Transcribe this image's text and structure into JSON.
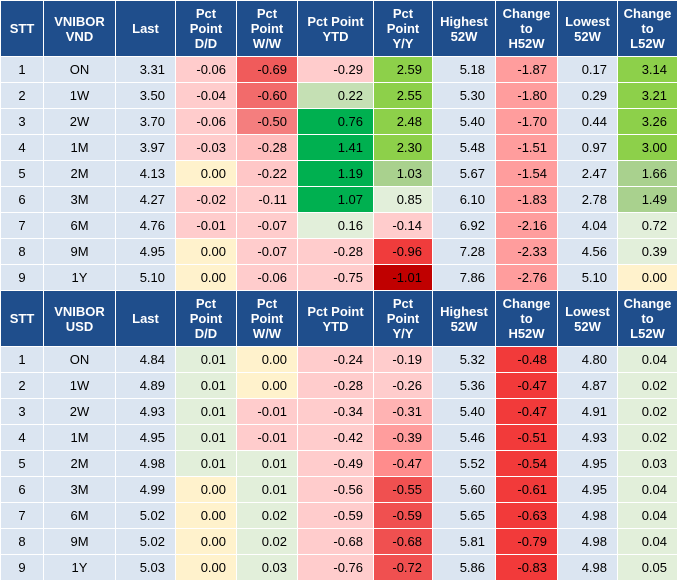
{
  "vnd": {
    "headers": [
      "STT",
      "VNIBOR\nVND",
      "Last",
      "Pct\nPoint\nD/D",
      "Pct\nPoint\nW/W",
      "Pct Point\nYTD",
      "Pct\nPoint\nY/Y",
      "Highest\n52W",
      "Change\nto\nH52W",
      "Lowest\n52W",
      "Change\nto\nL52W"
    ],
    "rows": [
      [
        "1",
        "ON",
        "3.31",
        "-0.06",
        "-0.69",
        "-0.29",
        "2.59",
        "5.18",
        "-1.87",
        "0.17",
        "3.14"
      ],
      [
        "2",
        "1W",
        "3.50",
        "-0.04",
        "-0.60",
        "0.22",
        "2.55",
        "5.30",
        "-1.80",
        "0.29",
        "3.21"
      ],
      [
        "3",
        "2W",
        "3.70",
        "-0.06",
        "-0.50",
        "0.76",
        "2.48",
        "5.40",
        "-1.70",
        "0.44",
        "3.26"
      ],
      [
        "4",
        "1M",
        "3.97",
        "-0.03",
        "-0.28",
        "1.41",
        "2.30",
        "5.48",
        "-1.51",
        "0.97",
        "3.00"
      ],
      [
        "5",
        "2M",
        "4.13",
        "0.00",
        "-0.22",
        "1.19",
        "1.03",
        "5.67",
        "-1.54",
        "2.47",
        "1.66"
      ],
      [
        "6",
        "3M",
        "4.27",
        "-0.02",
        "-0.11",
        "1.07",
        "0.85",
        "6.10",
        "-1.83",
        "2.78",
        "1.49"
      ],
      [
        "7",
        "6M",
        "4.76",
        "-0.01",
        "-0.07",
        "0.16",
        "-0.14",
        "6.92",
        "-2.16",
        "4.04",
        "0.72"
      ],
      [
        "8",
        "9M",
        "4.95",
        "0.00",
        "-0.07",
        "-0.28",
        "-0.96",
        "7.28",
        "-2.33",
        "4.56",
        "0.39"
      ],
      [
        "9",
        "1Y",
        "5.10",
        "0.00",
        "-0.06",
        "-0.75",
        "-1.01",
        "7.86",
        "-2.76",
        "5.10",
        "0.00"
      ]
    ],
    "colors": [
      [
        "#dbe5f1",
        "#dbe5f1",
        "#dbe5f1",
        "#ffcccc",
        "#f05b5b",
        "#ffcccc",
        "#8dd04a",
        "#dbe5f1",
        "#ff9d9d",
        "#dbe5f1",
        "#8dd04a"
      ],
      [
        "#dbe5f1",
        "#dbe5f1",
        "#dbe5f1",
        "#ffcccc",
        "#f26b6b",
        "#c5e0b4",
        "#8dd04a",
        "#dbe5f1",
        "#ff9d9d",
        "#dbe5f1",
        "#8dd04a"
      ],
      [
        "#dbe5f1",
        "#dbe5f1",
        "#dbe5f1",
        "#ffcccc",
        "#f47e7e",
        "#00b050",
        "#8dd04a",
        "#dbe5f1",
        "#ff9d9d",
        "#dbe5f1",
        "#8dd04a"
      ],
      [
        "#dbe5f1",
        "#dbe5f1",
        "#dbe5f1",
        "#ffcccc",
        "#ffbdbd",
        "#00b050",
        "#8dd04a",
        "#dbe5f1",
        "#ff9d9d",
        "#dbe5f1",
        "#8dd04a"
      ],
      [
        "#dbe5f1",
        "#dbe5f1",
        "#dbe5f1",
        "#fff2cc",
        "#ffc7c7",
        "#00b050",
        "#a9d18e",
        "#dbe5f1",
        "#ff9d9d",
        "#dbe5f1",
        "#a9d18e"
      ],
      [
        "#dbe5f1",
        "#dbe5f1",
        "#dbe5f1",
        "#ffcccc",
        "#ffcccc",
        "#00b050",
        "#e2efda",
        "#dbe5f1",
        "#ff9d9d",
        "#dbe5f1",
        "#a9d18e"
      ],
      [
        "#dbe5f1",
        "#dbe5f1",
        "#dbe5f1",
        "#ffcccc",
        "#ffcccc",
        "#e2efda",
        "#ffcccc",
        "#dbe5f1",
        "#ff9d9d",
        "#dbe5f1",
        "#e2efda"
      ],
      [
        "#dbe5f1",
        "#dbe5f1",
        "#dbe5f1",
        "#fff2cc",
        "#ffcccc",
        "#ffcccc",
        "#f03c3c",
        "#dbe5f1",
        "#ff9d9d",
        "#dbe5f1",
        "#e2efda"
      ],
      [
        "#dbe5f1",
        "#dbe5f1",
        "#dbe5f1",
        "#fff2cc",
        "#ffcccc",
        "#ffcccc",
        "#c00000",
        "#dbe5f1",
        "#ff9d9d",
        "#dbe5f1",
        "#fff2cc"
      ]
    ]
  },
  "usd": {
    "headers": [
      "STT",
      "VNIBOR\nUSD",
      "Last",
      "Pct\nPoint\nD/D",
      "Pct\nPoint\nW/W",
      "Pct Point\nYTD",
      "Pct\nPoint\nY/Y",
      "Highest\n52W",
      "Change\nto\nH52W",
      "Lowest\n52W",
      "Change\nto\nL52W"
    ],
    "rows": [
      [
        "1",
        "ON",
        "4.84",
        "0.01",
        "0.00",
        "-0.24",
        "-0.19",
        "5.32",
        "-0.48",
        "4.80",
        "0.04"
      ],
      [
        "2",
        "1W",
        "4.89",
        "0.01",
        "0.00",
        "-0.28",
        "-0.26",
        "5.36",
        "-0.47",
        "4.87",
        "0.02"
      ],
      [
        "3",
        "2W",
        "4.93",
        "0.01",
        "-0.01",
        "-0.34",
        "-0.31",
        "5.40",
        "-0.47",
        "4.91",
        "0.02"
      ],
      [
        "4",
        "1M",
        "4.95",
        "0.01",
        "-0.01",
        "-0.42",
        "-0.39",
        "5.46",
        "-0.51",
        "4.93",
        "0.02"
      ],
      [
        "5",
        "2M",
        "4.98",
        "0.01",
        "0.01",
        "-0.49",
        "-0.47",
        "5.52",
        "-0.54",
        "4.95",
        "0.03"
      ],
      [
        "6",
        "3M",
        "4.99",
        "0.00",
        "0.01",
        "-0.56",
        "-0.55",
        "5.60",
        "-0.61",
        "4.95",
        "0.04"
      ],
      [
        "7",
        "6M",
        "5.02",
        "0.00",
        "0.02",
        "-0.59",
        "-0.59",
        "5.65",
        "-0.63",
        "4.98",
        "0.04"
      ],
      [
        "8",
        "9M",
        "5.02",
        "0.00",
        "0.02",
        "-0.68",
        "-0.68",
        "5.81",
        "-0.79",
        "4.98",
        "0.04"
      ],
      [
        "9",
        "1Y",
        "5.03",
        "0.00",
        "0.03",
        "-0.76",
        "-0.72",
        "5.86",
        "-0.83",
        "4.98",
        "0.05"
      ]
    ],
    "colors": [
      [
        "#dbe5f1",
        "#dbe5f1",
        "#dbe5f1",
        "#e2efda",
        "#fff2cc",
        "#ffcccc",
        "#ffcccc",
        "#dbe5f1",
        "#f23a3a",
        "#dbe5f1",
        "#e2efda"
      ],
      [
        "#dbe5f1",
        "#dbe5f1",
        "#dbe5f1",
        "#e2efda",
        "#fff2cc",
        "#ffcccc",
        "#ffcccc",
        "#dbe5f1",
        "#f23a3a",
        "#dbe5f1",
        "#e2efda"
      ],
      [
        "#dbe5f1",
        "#dbe5f1",
        "#dbe5f1",
        "#e2efda",
        "#ffcccc",
        "#ffcccc",
        "#ffb3b3",
        "#dbe5f1",
        "#f23a3a",
        "#dbe5f1",
        "#e2efda"
      ],
      [
        "#dbe5f1",
        "#dbe5f1",
        "#dbe5f1",
        "#e2efda",
        "#ffcccc",
        "#ffcccc",
        "#ff9d9d",
        "#dbe5f1",
        "#f23a3a",
        "#dbe5f1",
        "#e2efda"
      ],
      [
        "#dbe5f1",
        "#dbe5f1",
        "#dbe5f1",
        "#e2efda",
        "#e2efda",
        "#ffcccc",
        "#ff8c8c",
        "#dbe5f1",
        "#f23a3a",
        "#dbe5f1",
        "#e2efda"
      ],
      [
        "#dbe5f1",
        "#dbe5f1",
        "#dbe5f1",
        "#fff2cc",
        "#e2efda",
        "#ffcccc",
        "#f05050",
        "#dbe5f1",
        "#f23a3a",
        "#dbe5f1",
        "#e2efda"
      ],
      [
        "#dbe5f1",
        "#dbe5f1",
        "#dbe5f1",
        "#fff2cc",
        "#e2efda",
        "#ffcccc",
        "#f05050",
        "#dbe5f1",
        "#f23a3a",
        "#dbe5f1",
        "#e2efda"
      ],
      [
        "#dbe5f1",
        "#dbe5f1",
        "#dbe5f1",
        "#fff2cc",
        "#e2efda",
        "#ffcccc",
        "#f05050",
        "#dbe5f1",
        "#f23a3a",
        "#dbe5f1",
        "#e2efda"
      ],
      [
        "#dbe5f1",
        "#dbe5f1",
        "#dbe5f1",
        "#fff2cc",
        "#e2efda",
        "#ffcccc",
        "#f05050",
        "#dbe5f1",
        "#f23a3a",
        "#dbe5f1",
        "#e2efda"
      ]
    ]
  }
}
